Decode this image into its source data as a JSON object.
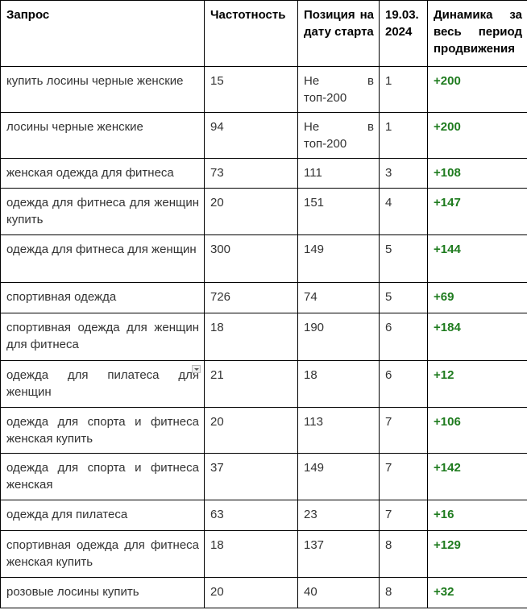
{
  "headers": [
    "Запрос",
    "Частотность",
    "Позиция на дату старта",
    "19.03. 2024",
    "Динамика за весь период продвижения"
  ],
  "colors": {
    "dynamic": "#1e7b1e",
    "border": "#000000"
  },
  "rows": [
    {
      "query": "купить лосины черные женские",
      "freq": "15",
      "start": "Не в топ-200",
      "pos": "1",
      "dyn": "+200"
    },
    {
      "query": "лосины черные женские",
      "freq": "94",
      "start": "Не в топ-200",
      "pos": "1",
      "dyn": "+200"
    },
    {
      "query": "женская одежда для фитнеса",
      "freq": "73",
      "start": "111",
      "pos": "3",
      "dyn": "+108"
    },
    {
      "query": "одежда для фитнеса для женщин купить",
      "freq": "20",
      "start": "151",
      "pos": "4",
      "dyn": "+147"
    },
    {
      "query": "одежда для фитнеса для женщин",
      "freq": "300",
      "start": "149",
      "pos": "5",
      "dyn": "+144"
    },
    {
      "query": "спортивная одежда",
      "freq": "726",
      "start": "74",
      "pos": "5",
      "dyn": "+69"
    },
    {
      "query": "спортивная одежда для женщин для фитнеса",
      "freq": "18",
      "start": "190",
      "pos": "6",
      "dyn": "+184"
    },
    {
      "query": "одежда для пилатеса для женщин",
      "freq": "21",
      "start": "18",
      "pos": "6",
      "dyn": "+12"
    },
    {
      "query": "одежда для спорта и фитнеса женская купить",
      "freq": "20",
      "start": "113",
      "pos": "7",
      "dyn": "+106"
    },
    {
      "query": "одежда для спорта и фитнеса женская",
      "freq": "37",
      "start": "149",
      "pos": "7",
      "dyn": "+142"
    },
    {
      "query": "одежда для пилатеса",
      "freq": "63",
      "start": "23",
      "pos": "7",
      "dyn": "+16"
    },
    {
      "query": "спортивная одежда для фитнеса женская купить",
      "freq": "18",
      "start": "137",
      "pos": "8",
      "dyn": "+129"
    },
    {
      "query": "розовые лосины купить",
      "freq": "20",
      "start": "40",
      "pos": "8",
      "dyn": "+32"
    }
  ]
}
